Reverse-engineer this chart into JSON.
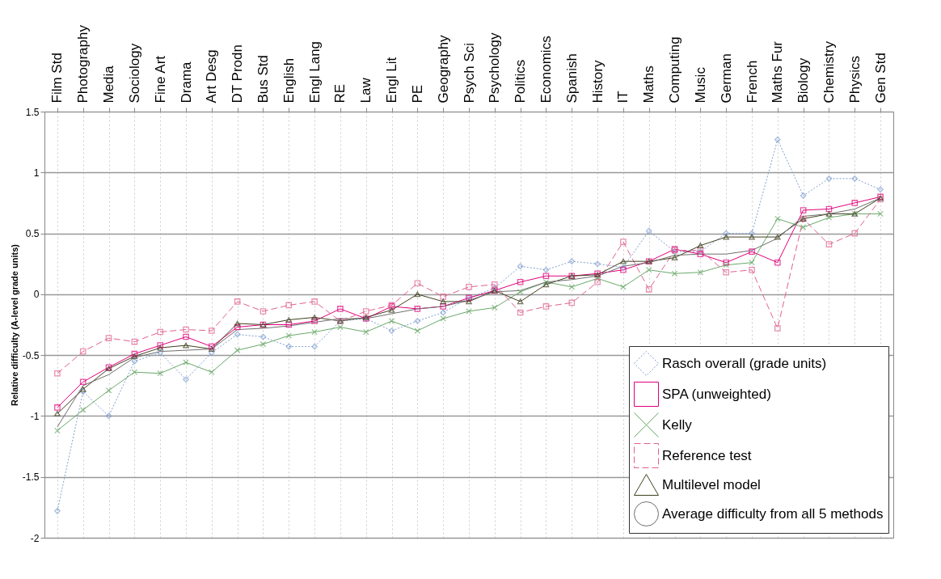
{
  "chart_data": {
    "type": "line",
    "ylabel": "Relative difficulty (A-level grade units)",
    "categories": [
      "Film Std",
      "Photography",
      "Media",
      "Sociology",
      "Fine Art",
      "Drama",
      "Art Desg",
      "DT Prodn",
      "Bus Std",
      "English",
      "Engl Lang",
      "RE",
      "Law",
      "Engl Lit",
      "PE",
      "Geography",
      "Psych Sci",
      "Psychology",
      "Politics",
      "Economics",
      "Spanish",
      "History",
      "IT",
      "Maths",
      "Computing",
      "Music",
      "German",
      "French",
      "Maths Fur",
      "Biology",
      "Chemistry",
      "Physics",
      "Gen Std"
    ],
    "series": [
      {
        "name": "Rasch overall (grade units)",
        "color": "#7f9fd0",
        "marker": "diamond",
        "line_style": "dotted",
        "values": [
          -1.78,
          -0.8,
          -1.0,
          -0.55,
          -0.48,
          -0.7,
          -0.48,
          -0.33,
          -0.35,
          -0.43,
          -0.43,
          -0.22,
          -0.2,
          -0.3,
          -0.22,
          -0.15,
          -0.03,
          0.05,
          0.23,
          0.2,
          0.27,
          0.25,
          0.22,
          0.52,
          0.35,
          0.35,
          0.5,
          0.5,
          1.27,
          0.81,
          0.95,
          0.95,
          0.86
        ]
      },
      {
        "name": "SPA (unweighted)",
        "color": "#e0007a",
        "marker": "square",
        "line_style": "solid",
        "values": [
          -0.93,
          -0.72,
          -0.6,
          -0.49,
          -0.42,
          -0.35,
          -0.43,
          -0.27,
          -0.25,
          -0.25,
          -0.22,
          -0.12,
          -0.2,
          -0.1,
          -0.12,
          -0.1,
          -0.03,
          0.03,
          0.1,
          0.15,
          0.15,
          0.17,
          0.2,
          0.27,
          0.37,
          0.33,
          0.26,
          0.35,
          0.26,
          0.69,
          0.7,
          0.75,
          0.8
        ]
      },
      {
        "name": "Kelly",
        "color": "#6aa86a",
        "marker": "cross",
        "line_style": "solid",
        "values": [
          -1.12,
          -0.95,
          -0.79,
          -0.64,
          -0.65,
          -0.56,
          -0.64,
          -0.46,
          -0.41,
          -0.34,
          -0.31,
          -0.27,
          -0.31,
          -0.22,
          -0.3,
          -0.2,
          -0.14,
          -0.11,
          0.02,
          0.1,
          0.06,
          0.13,
          0.06,
          0.2,
          0.17,
          0.18,
          0.24,
          0.26,
          0.62,
          0.55,
          0.63,
          0.66,
          0.66
        ]
      },
      {
        "name": "Reference test",
        "color": "#e06090",
        "marker": "square",
        "line_style": "dashed",
        "values": [
          -0.65,
          -0.47,
          -0.36,
          -0.39,
          -0.31,
          -0.29,
          -0.3,
          -0.06,
          -0.14,
          -0.09,
          -0.06,
          -0.22,
          -0.14,
          -0.09,
          0.09,
          -0.02,
          0.06,
          0.08,
          -0.15,
          -0.1,
          -0.07,
          0.1,
          0.43,
          0.04,
          0.36,
          0.36,
          0.18,
          0.2,
          -0.28,
          0.62,
          0.41,
          0.5,
          0.78
        ]
      },
      {
        "name": "Multilevel model",
        "color": "#404020",
        "marker": "triangle",
        "line_style": "solid",
        "values": [
          -0.98,
          -0.78,
          -0.61,
          -0.51,
          -0.44,
          -0.42,
          -0.45,
          -0.24,
          -0.25,
          -0.21,
          -0.19,
          -0.22,
          -0.19,
          -0.13,
          0.0,
          -0.06,
          -0.06,
          0.03,
          -0.06,
          0.08,
          0.15,
          0.16,
          0.27,
          0.27,
          0.3,
          0.4,
          0.47,
          0.47,
          0.47,
          0.62,
          0.66,
          0.66,
          0.79
        ]
      },
      {
        "name": "Average difficulty from all 5 methods",
        "color": "#6e6e6e",
        "marker": "none",
        "line_style": "solid",
        "values": [
          -1.09,
          -0.75,
          -0.66,
          -0.52,
          -0.47,
          -0.46,
          -0.45,
          -0.29,
          -0.28,
          -0.26,
          -0.23,
          -0.2,
          -0.2,
          -0.16,
          -0.12,
          -0.1,
          -0.05,
          0.02,
          0.03,
          0.1,
          0.12,
          0.15,
          0.23,
          0.26,
          0.32,
          0.33,
          0.33,
          0.36,
          0.46,
          0.64,
          0.66,
          0.7,
          0.79
        ]
      }
    ],
    "ylim": [
      -2,
      1.5
    ],
    "yticks": [
      -2,
      -1.5,
      -1,
      -0.5,
      0,
      0.5,
      1,
      1.5
    ],
    "grid": true,
    "legend": "bottom right"
  }
}
